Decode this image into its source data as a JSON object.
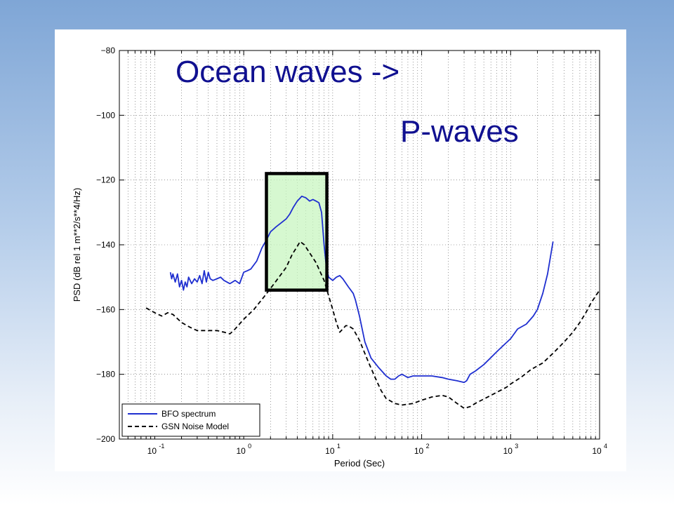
{
  "chart_data": {
    "type": "line",
    "title": "",
    "xlabel": "Period (Sec)",
    "ylabel": "PSD (dB rel 1 m**2/s**4/Hz)",
    "xscale": "log",
    "xlim": [
      0.04,
      10000
    ],
    "ylim": [
      -200,
      -80
    ],
    "grid": true,
    "x_ticks": [
      0.1,
      1,
      10,
      100,
      1000,
      10000
    ],
    "x_tick_labels": [
      {
        "base": "10",
        "exp": "-1"
      },
      {
        "base": "10",
        "exp": "0"
      },
      {
        "base": "10",
        "exp": "1"
      },
      {
        "base": "10",
        "exp": "2"
      },
      {
        "base": "10",
        "exp": "3"
      },
      {
        "base": "10",
        "exp": "4"
      }
    ],
    "y_ticks": [
      -200,
      -180,
      -160,
      -140,
      -120,
      -100,
      -80
    ],
    "y_tick_labels": [
      "−200",
      "−180",
      "−160",
      "−140",
      "−120",
      "−100",
      "−80"
    ],
    "legend_position": "bottom-left",
    "series": [
      {
        "name": "BFO spectrum",
        "color": "#1f2fd0",
        "style": "solid",
        "points": [
          [
            0.15,
            -148.5
          ],
          [
            0.155,
            -150.5
          ],
          [
            0.16,
            -149
          ],
          [
            0.17,
            -151.5
          ],
          [
            0.18,
            -149
          ],
          [
            0.19,
            -153
          ],
          [
            0.2,
            -151
          ],
          [
            0.21,
            -154
          ],
          [
            0.22,
            -151.5
          ],
          [
            0.23,
            -153
          ],
          [
            0.24,
            -150
          ],
          [
            0.26,
            -152
          ],
          [
            0.28,
            -150.5
          ],
          [
            0.3,
            -151.5
          ],
          [
            0.32,
            -149.5
          ],
          [
            0.34,
            -152
          ],
          [
            0.36,
            -148
          ],
          [
            0.38,
            -151.5
          ],
          [
            0.4,
            -148.5
          ],
          [
            0.42,
            -150.5
          ],
          [
            0.45,
            -151
          ],
          [
            0.5,
            -150.5
          ],
          [
            0.55,
            -150
          ],
          [
            0.6,
            -151
          ],
          [
            0.7,
            -152
          ],
          [
            0.8,
            -151
          ],
          [
            0.9,
            -152
          ],
          [
            1.0,
            -148.5
          ],
          [
            1.1,
            -148
          ],
          [
            1.2,
            -147.5
          ],
          [
            1.4,
            -145
          ],
          [
            1.6,
            -141
          ],
          [
            1.8,
            -138.5
          ],
          [
            2.0,
            -136
          ],
          [
            2.3,
            -134.5
          ],
          [
            2.7,
            -133
          ],
          [
            3.0,
            -132
          ],
          [
            3.3,
            -130.5
          ],
          [
            3.6,
            -128.5
          ],
          [
            4.0,
            -126.5
          ],
          [
            4.5,
            -125
          ],
          [
            5.0,
            -125.5
          ],
          [
            5.5,
            -126.5
          ],
          [
            6.0,
            -126
          ],
          [
            6.5,
            -126.5
          ],
          [
            7.0,
            -127
          ],
          [
            7.5,
            -130
          ],
          [
            8.0,
            -140
          ],
          [
            8.5,
            -147
          ],
          [
            9.0,
            -150
          ],
          [
            9.5,
            -150.5
          ],
          [
            10,
            -151
          ],
          [
            11,
            -150
          ],
          [
            12,
            -149.5
          ],
          [
            13,
            -150.5
          ],
          [
            15,
            -153
          ],
          [
            17,
            -155
          ],
          [
            18,
            -157
          ],
          [
            20,
            -162
          ],
          [
            23,
            -170
          ],
          [
            27,
            -175
          ],
          [
            33,
            -178
          ],
          [
            40,
            -180.5
          ],
          [
            45,
            -181.5
          ],
          [
            50,
            -181.5
          ],
          [
            55,
            -180.5
          ],
          [
            60,
            -180
          ],
          [
            65,
            -180.5
          ],
          [
            70,
            -181
          ],
          [
            80,
            -180.5
          ],
          [
            100,
            -180.5
          ],
          [
            130,
            -180.5
          ],
          [
            170,
            -181
          ],
          [
            200,
            -181.5
          ],
          [
            250,
            -182
          ],
          [
            300,
            -182.5
          ],
          [
            320,
            -182
          ],
          [
            350,
            -180
          ],
          [
            400,
            -179
          ],
          [
            500,
            -177
          ],
          [
            700,
            -173
          ],
          [
            800,
            -171.5
          ],
          [
            1000,
            -169
          ],
          [
            1200,
            -166
          ],
          [
            1500,
            -164.5
          ],
          [
            1800,
            -162
          ],
          [
            2000,
            -160
          ],
          [
            2300,
            -155
          ],
          [
            2600,
            -149
          ],
          [
            3000,
            -139
          ]
        ]
      },
      {
        "name": "GSN Noise Model",
        "color": "#000000",
        "style": "dashed",
        "points": [
          [
            0.08,
            -159.5
          ],
          [
            0.1,
            -161
          ],
          [
            0.12,
            -162
          ],
          [
            0.14,
            -161
          ],
          [
            0.16,
            -161.5
          ],
          [
            0.2,
            -164
          ],
          [
            0.25,
            -165.5
          ],
          [
            0.3,
            -166.5
          ],
          [
            0.4,
            -166.5
          ],
          [
            0.5,
            -166.5
          ],
          [
            0.6,
            -167
          ],
          [
            0.7,
            -167.5
          ],
          [
            0.8,
            -166
          ],
          [
            1.0,
            -163
          ],
          [
            1.3,
            -160
          ],
          [
            1.7,
            -156
          ],
          [
            2.2,
            -152
          ],
          [
            3.0,
            -147
          ],
          [
            3.5,
            -143
          ],
          [
            4.0,
            -140.5
          ],
          [
            4.3,
            -139
          ],
          [
            4.8,
            -140
          ],
          [
            5.5,
            -142.5
          ],
          [
            6.5,
            -145.5
          ],
          [
            8.0,
            -151
          ],
          [
            10,
            -160
          ],
          [
            11,
            -164
          ],
          [
            12,
            -167
          ],
          [
            13,
            -166
          ],
          [
            14,
            -165
          ],
          [
            15,
            -165
          ],
          [
            17,
            -166
          ],
          [
            20,
            -169.5
          ],
          [
            25,
            -176
          ],
          [
            30,
            -181
          ],
          [
            35,
            -185
          ],
          [
            40,
            -187.5
          ],
          [
            50,
            -189
          ],
          [
            60,
            -189.5
          ],
          [
            80,
            -189
          ],
          [
            100,
            -188
          ],
          [
            130,
            -187
          ],
          [
            170,
            -186.5
          ],
          [
            200,
            -187
          ],
          [
            250,
            -189
          ],
          [
            300,
            -190.5
          ],
          [
            350,
            -190
          ],
          [
            400,
            -189
          ],
          [
            600,
            -186.5
          ],
          [
            900,
            -184
          ],
          [
            1000,
            -183
          ],
          [
            1300,
            -181
          ],
          [
            1700,
            -178.5
          ],
          [
            2300,
            -176.5
          ],
          [
            3000,
            -173.5
          ],
          [
            4000,
            -170
          ],
          [
            5000,
            -167
          ],
          [
            6000,
            -164
          ],
          [
            7000,
            -161
          ],
          [
            8000,
            -158
          ],
          [
            10000,
            -154
          ]
        ]
      }
    ],
    "highlight_box": {
      "x_range": [
        1.8,
        8.6
      ],
      "y_range": [
        -154,
        -118
      ],
      "fill": "#c8f5c0"
    },
    "annotations": [
      "Ocean waves ->",
      "P-waves"
    ]
  }
}
